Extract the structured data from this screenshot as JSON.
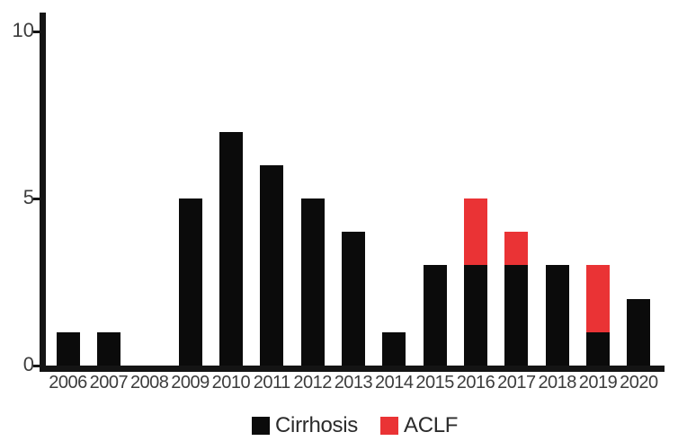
{
  "chart_data": {
    "type": "bar",
    "stacked": true,
    "title": "",
    "xlabel": "",
    "ylabel": "",
    "categories": [
      "2006",
      "2007",
      "2008",
      "2009",
      "2010",
      "2011",
      "2012",
      "2013",
      "2014",
      "2015",
      "2016",
      "2017",
      "2018",
      "2019",
      "2020"
    ],
    "series": [
      {
        "name": "Cirrhosis",
        "color": "#0b0b0b",
        "values": [
          1,
          1,
          0,
          5,
          7,
          6,
          5,
          4,
          1,
          3,
          3,
          3,
          3,
          1,
          2
        ]
      },
      {
        "name": "ACLF",
        "color": "#ea3335",
        "values": [
          0,
          0,
          0,
          0,
          0,
          0,
          0,
          0,
          0,
          0,
          2,
          1,
          0,
          2,
          0
        ]
      }
    ],
    "totals": [
      1,
      1,
      0,
      5,
      7,
      6,
      5,
      4,
      1,
      3,
      5,
      4,
      3,
      3,
      2
    ],
    "y_ticks": [
      0,
      5,
      10
    ],
    "ylim": [
      0,
      10
    ],
    "grid": false,
    "legend_position": "bottom-center"
  },
  "colors": {
    "background": "#ffffff",
    "axis": "#141414",
    "tick_label": "#3c3c3c",
    "legend_text": "#2b2b2b",
    "cirrhosis": "#0b0b0b",
    "aclf": "#ea3335"
  }
}
